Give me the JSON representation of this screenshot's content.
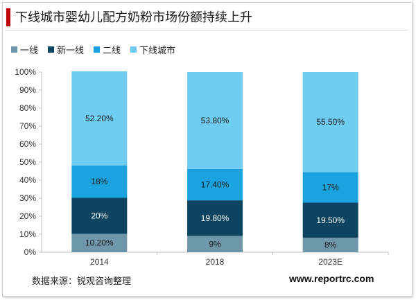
{
  "header": {
    "title": "下线城市婴幼儿配方奶粉市场份额持续上升"
  },
  "footer": {
    "source": "数据来源：锐观咨询整理",
    "site": "www.reportrc.com"
  },
  "chart_data": {
    "type": "bar",
    "stacked": true,
    "percent_stacked": true,
    "title": "下线城市婴幼儿配方奶粉市场份额持续上升",
    "categories": [
      "2014",
      "2018",
      "2023E"
    ],
    "series": [
      {
        "name": "一线",
        "color": "#6e97aa",
        "values": [
          10.2,
          9,
          8
        ],
        "labels": [
          "10.20%",
          "9%",
          "8%"
        ]
      },
      {
        "name": "新一线",
        "color": "#0d4561",
        "values": [
          20,
          19.8,
          19.5
        ],
        "labels": [
          "20%",
          "19.80%",
          "19.50%"
        ]
      },
      {
        "name": "二线",
        "color": "#1aa3de",
        "values": [
          18,
          17.4,
          17
        ],
        "labels": [
          "18%",
          "17.40%",
          "17%"
        ]
      },
      {
        "name": "下线城市",
        "color": "#6fcdf1",
        "values": [
          52.2,
          53.8,
          55.5
        ],
        "labels": [
          "52.20%",
          "53.80%",
          "55.50%"
        ]
      }
    ],
    "ylim": [
      0,
      100
    ],
    "yticks": [
      "0%",
      "10%",
      "20%",
      "30%",
      "40%",
      "50%",
      "60%",
      "70%",
      "80%",
      "90%",
      "100%"
    ],
    "legend_position": "top-left",
    "grid": false
  }
}
